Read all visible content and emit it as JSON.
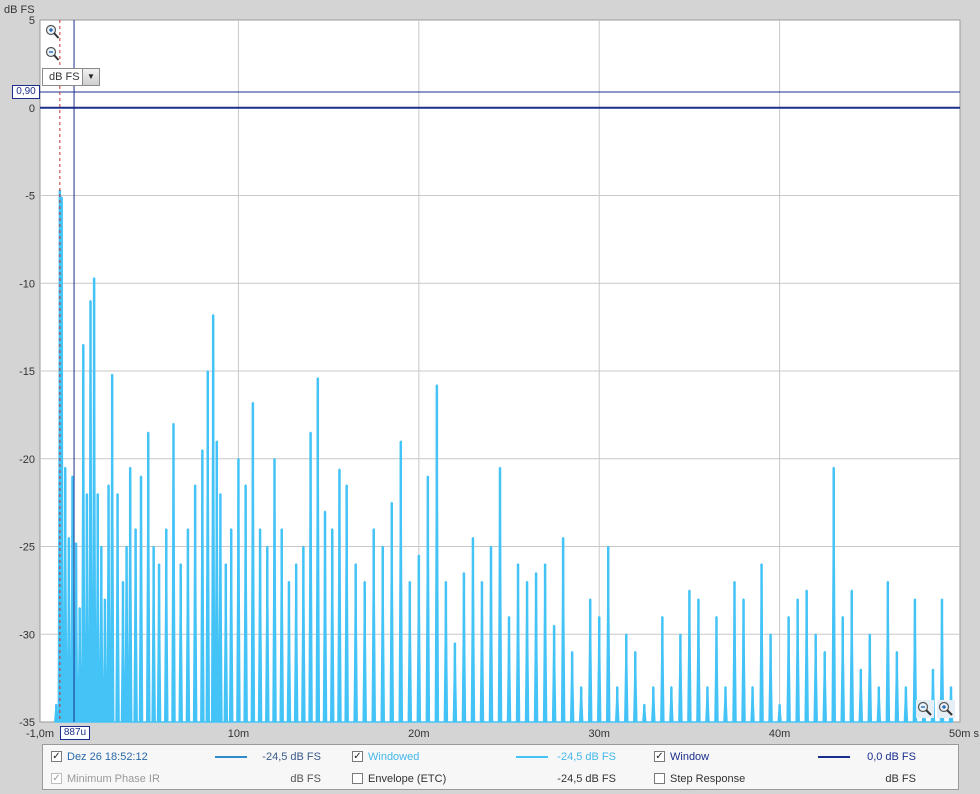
{
  "chart_data": {
    "type": "line",
    "ylabel": "dB FS",
    "xunit": "s",
    "xlim": [
      -0.001,
      0.05
    ],
    "ylim": [
      -35,
      5
    ],
    "yticks": [
      5,
      0,
      -5,
      -10,
      -15,
      -20,
      -25,
      -30,
      -35
    ],
    "ytick_labels": [
      "5",
      "0",
      "-5",
      "-10",
      "-15",
      "-20",
      "-25",
      "-30",
      "-35"
    ],
    "xticks": [
      -0.001,
      0.01,
      0.02,
      0.03,
      0.04,
      0.05
    ],
    "xtick_labels": [
      "-1,0m",
      "10m",
      "20m",
      "30m",
      "40m",
      "50m s"
    ],
    "grid": true,
    "series": [
      {
        "name": "Windowed",
        "color": "#44c3f7",
        "style": "filled-impulse",
        "x": [
          -0.0001,
          0.0001,
          0.0002,
          0.0004,
          0.0006,
          0.0008,
          0.001,
          0.0012,
          0.0014,
          0.0016,
          0.0018,
          0.002,
          0.0022,
          0.0024,
          0.0026,
          0.0028,
          0.003,
          0.0033,
          0.0036,
          0.0038,
          0.004,
          0.0043,
          0.0046,
          0.005,
          0.0053,
          0.0056,
          0.006,
          0.0064,
          0.0068,
          0.0072,
          0.0076,
          0.008,
          0.0083,
          0.0086,
          0.0088,
          0.009,
          0.0093,
          0.0096,
          0.01,
          0.0104,
          0.0108,
          0.0112,
          0.0116,
          0.012,
          0.0124,
          0.0128,
          0.0132,
          0.0136,
          0.014,
          0.0144,
          0.0148,
          0.0152,
          0.0156,
          0.016,
          0.0165,
          0.017,
          0.0175,
          0.018,
          0.0185,
          0.019,
          0.0195,
          0.02,
          0.0205,
          0.021,
          0.0215,
          0.022,
          0.0225,
          0.023,
          0.0235,
          0.024,
          0.0245,
          0.025,
          0.0255,
          0.026,
          0.0265,
          0.027,
          0.0275,
          0.028,
          0.0285,
          0.029,
          0.0295,
          0.03,
          0.0305,
          0.031,
          0.0315,
          0.032,
          0.0325,
          0.033,
          0.0335,
          0.034,
          0.0345,
          0.035,
          0.0355,
          0.036,
          0.0365,
          0.037,
          0.0375,
          0.038,
          0.0385,
          0.039,
          0.0395,
          0.04,
          0.0405,
          0.041,
          0.0415,
          0.042,
          0.0425,
          0.043,
          0.0435,
          0.044,
          0.0445,
          0.045,
          0.0455,
          0.046,
          0.0465,
          0.047,
          0.0475,
          0.048,
          0.0485,
          0.049,
          0.0495
        ],
        "y": [
          -34,
          -4.7,
          -5.1,
          -20.5,
          -24.5,
          -21,
          -24.8,
          -28.5,
          -13.5,
          -22,
          -11,
          -9.7,
          -22,
          -25,
          -28,
          -21.5,
          -15.2,
          -22,
          -27,
          -25,
          -20.5,
          -24,
          -21,
          -18.5,
          -25,
          -26,
          -24,
          -18,
          -26,
          -24,
          -21.5,
          -19.5,
          -15,
          -11.8,
          -19,
          -22,
          -26,
          -24,
          -20,
          -21.5,
          -16.8,
          -24,
          -25,
          -20,
          -24,
          -27,
          -26,
          -25,
          -18.5,
          -15.4,
          -23,
          -24,
          -20.6,
          -21.5,
          -26,
          -27,
          -24,
          -25,
          -22.5,
          -19,
          -27,
          -25.5,
          -21,
          -15.8,
          -27,
          -30.5,
          -26.5,
          -24.5,
          -27,
          -25,
          -20.5,
          -29,
          -26,
          -27,
          -26.5,
          -26,
          -29.5,
          -24.5,
          -31,
          -33,
          -28,
          -29,
          -25,
          -33,
          -30,
          -31,
          -34,
          -33,
          -29,
          -33,
          -30,
          -27.5,
          -28,
          -33,
          -29,
          -33,
          -27,
          -28,
          -33,
          -26,
          -30,
          -34,
          -29,
          -28,
          -27.5,
          -30,
          -31,
          -20.5,
          -29,
          -27.5,
          -32,
          -30,
          -33,
          -27,
          -31,
          -33,
          -28,
          -34,
          -32,
          -28,
          -33
        ]
      },
      {
        "name": "Window",
        "color": "#1b2e8c",
        "style": "line",
        "value": 0
      }
    ],
    "cursors": {
      "y_label": "0,90",
      "y_value": 0.9,
      "x_label": "887u",
      "x_value": 0.000887
    }
  },
  "unit_selector": {
    "value": "dB FS",
    "arrow": "▼"
  },
  "legend": {
    "items": [
      {
        "checked": true,
        "enabled": true,
        "name": "Dez 26 18:52:12",
        "value": "-24,5 dB FS",
        "name_color": "#2a6aa8",
        "value_color": "#3a5a8a",
        "swatch": "#2f8bc9"
      },
      {
        "checked": true,
        "enabled": true,
        "name": "Windowed",
        "value": "-24,5 dB FS",
        "name_color": "#44b8ea",
        "value_color": "#44b8ea",
        "swatch": "#44c3f7"
      },
      {
        "checked": true,
        "enabled": true,
        "name": "Window",
        "value": "0,0 dB FS",
        "name_color": "#1b2e8c",
        "value_color": "#1b2e8c",
        "swatch": "#1b2e8c"
      },
      {
        "checked": true,
        "enabled": false,
        "name": "Minimum Phase IR",
        "value": "dB FS",
        "name_color": "#999999",
        "value_color": "#555555",
        "swatch": ""
      },
      {
        "checked": false,
        "enabled": true,
        "name": "Envelope (ETC)",
        "value": "-24,5 dB FS",
        "name_color": "#333333",
        "value_color": "#333333",
        "swatch": ""
      },
      {
        "checked": false,
        "enabled": true,
        "name": "Step Response",
        "value": "dB FS",
        "name_color": "#333333",
        "value_color": "#333333",
        "swatch": ""
      }
    ]
  },
  "icons": [
    "zoom-in-icon",
    "zoom-out-icon",
    "zoom-fit-icon"
  ]
}
